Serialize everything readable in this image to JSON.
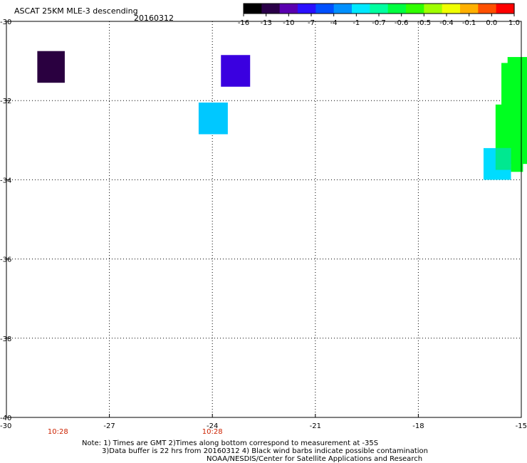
{
  "title": {
    "product": "ASCAT 25KM MLE-3 descending",
    "date": "20160312"
  },
  "colorbar": {
    "labels": [
      "-16",
      "-13",
      "-10",
      "-7",
      "-4",
      "-1",
      "-0.7",
      "-0.6",
      "-0.5",
      "-0.4",
      "-0.1",
      "0.0",
      "1.0"
    ],
    "colors": [
      "#000000",
      "#2a0048",
      "#5a00b0",
      "#2a10ff",
      "#0050ff",
      "#0090ff",
      "#00e8ff",
      "#00ffa0",
      "#00ff40",
      "#30ff00",
      "#a0ff00",
      "#f0ff00",
      "#ffb000",
      "#ff5000",
      "#ff0000"
    ]
  },
  "map": {
    "lon_range": [
      -30,
      -15
    ],
    "lat_range": [
      -40,
      -30
    ],
    "x_tick_labels": [
      "-30",
      "-27",
      "-24",
      "-21",
      "-18",
      "-15"
    ],
    "y_tick_labels": [
      "-30",
      "-32",
      "-34",
      "-36",
      "-38",
      "-40"
    ],
    "time_labels": [
      {
        "lon": -28.5,
        "text": "10:28"
      },
      {
        "lon": -24.0,
        "text": "10:28"
      }
    ],
    "cells": [
      {
        "lon": [
          -29.1,
          -28.3
        ],
        "lat": [
          -31.55,
          -30.75
        ],
        "color": "#2a0040"
      },
      {
        "lon": [
          -23.75,
          -22.9
        ],
        "lat": [
          -31.65,
          -30.85
        ],
        "color": "#3a00e0"
      },
      {
        "lon": [
          -24.4,
          -23.55
        ],
        "lat": [
          -32.85,
          -32.05
        ],
        "color": "#00c8ff"
      },
      {
        "lon": [
          -15.4,
          -14.75
        ],
        "lat": [
          -32.3,
          -30.9
        ],
        "color": "#00ff20"
      },
      {
        "lon": [
          -15.58,
          -15.2
        ],
        "lat": [
          -32.2,
          -31.05
        ],
        "color": "#00ff20"
      },
      {
        "lon": [
          -15.75,
          -14.8
        ],
        "lat": [
          -33.6,
          -32.1
        ],
        "color": "#00ff20"
      },
      {
        "lon": [
          -15.3,
          -14.95
        ],
        "lat": [
          -33.8,
          -33.4
        ],
        "color": "#00ff20"
      },
      {
        "lon": [
          -16.1,
          -15.3
        ],
        "lat": [
          -34.0,
          -33.2
        ],
        "color": "#00dcff"
      },
      {
        "lon": [
          -15.75,
          -15.3
        ],
        "lat": [
          -33.75,
          -33.2
        ],
        "color": "#00e890"
      }
    ]
  },
  "notes": {
    "line1": "Note: 1) Times are GMT 2)Times along bottom correspond to measurement at -35S",
    "line2": "3)Data buffer is 22 hrs from 20160312 4) Black wind barbs indicate possible contamination",
    "line3": "NOAA/NESDIS/Center for Satellite Applications and Research"
  }
}
